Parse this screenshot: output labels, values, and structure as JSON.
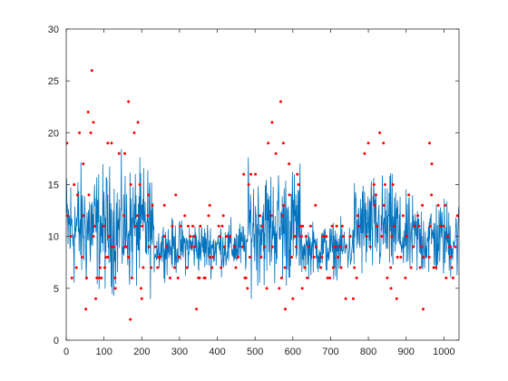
{
  "chart_data": {
    "type": "line",
    "title": "",
    "xlabel": "",
    "ylabel": "",
    "xlim": [
      0,
      1040
    ],
    "ylim": [
      0,
      30
    ],
    "grid": false,
    "xticks": [
      0,
      100,
      200,
      300,
      400,
      500,
      600,
      700,
      800,
      900,
      1000
    ],
    "yticks": [
      0,
      5,
      10,
      15,
      20,
      25,
      30
    ],
    "xtick_labels": [
      "0",
      "100",
      "200",
      "300",
      "400",
      "500",
      "600",
      "700",
      "800",
      "900",
      "1000"
    ],
    "ytick_labels": [
      "0",
      "5",
      "10",
      "15",
      "20",
      "25",
      "30"
    ],
    "colors": {
      "line": "#0072BD",
      "points": "#FF0000",
      "axes": "#262626",
      "background": "#FFFFFF"
    },
    "series": [
      {
        "type": "scatter",
        "points": [
          [
            2,
            19
          ],
          [
            35,
            20
          ],
          [
            58,
            22
          ],
          [
            65,
            20
          ],
          [
            68,
            26
          ],
          [
            72,
            21
          ],
          [
            52,
            3
          ],
          [
            78,
            4
          ],
          [
            30,
            14
          ],
          [
            45,
            17
          ],
          [
            110,
            19
          ],
          [
            120,
            19
          ],
          [
            130,
            5
          ],
          [
            140,
            18
          ],
          [
            155,
            18
          ],
          [
            165,
            23
          ],
          [
            170,
            2
          ],
          [
            180,
            20
          ],
          [
            190,
            21
          ],
          [
            200,
            4
          ],
          [
            218,
            14
          ],
          [
            260,
            13
          ],
          [
            290,
            14
          ],
          [
            345,
            3
          ],
          [
            355,
            11
          ],
          [
            380,
            13
          ],
          [
            470,
            16
          ],
          [
            535,
            19
          ],
          [
            545,
            21
          ],
          [
            555,
            18
          ],
          [
            568,
            23
          ],
          [
            580,
            3
          ],
          [
            575,
            19
          ],
          [
            590,
            17
          ],
          [
            600,
            4
          ],
          [
            625,
            5
          ],
          [
            660,
            13
          ],
          [
            740,
            4
          ],
          [
            760,
            4
          ],
          [
            790,
            18
          ],
          [
            800,
            19
          ],
          [
            815,
            15
          ],
          [
            830,
            20
          ],
          [
            840,
            19
          ],
          [
            860,
            5
          ],
          [
            875,
            4
          ],
          [
            945,
            3
          ],
          [
            962,
            19
          ],
          [
            968,
            17
          ],
          [
            985,
            13
          ],
          [
            1010,
            10
          ],
          [
            1030,
            9
          ]
        ]
      },
      {
        "type": "line",
        "segments": [
          {
            "x0": 0,
            "x1": 230,
            "base": 10.8,
            "amp": 4.2,
            "amin": 1,
            "amax": 21
          },
          {
            "x0": 230,
            "x1": 480,
            "base": 9.0,
            "amp": 1.8,
            "amin": 5,
            "amax": 15
          },
          {
            "x0": 480,
            "x1": 620,
            "base": 11.0,
            "amp": 4.0,
            "amin": 3,
            "amax": 20
          },
          {
            "x0": 620,
            "x1": 760,
            "base": 8.8,
            "amp": 1.8,
            "amin": 1.5,
            "amax": 13
          },
          {
            "x0": 760,
            "x1": 880,
            "base": 10.8,
            "amp": 3.5,
            "amin": 4,
            "amax": 19
          },
          {
            "x0": 880,
            "x1": 1040,
            "base": 9.8,
            "amp": 2.8,
            "amin": 4,
            "amax": 18
          }
        ],
        "point_count": 1040
      }
    ]
  }
}
